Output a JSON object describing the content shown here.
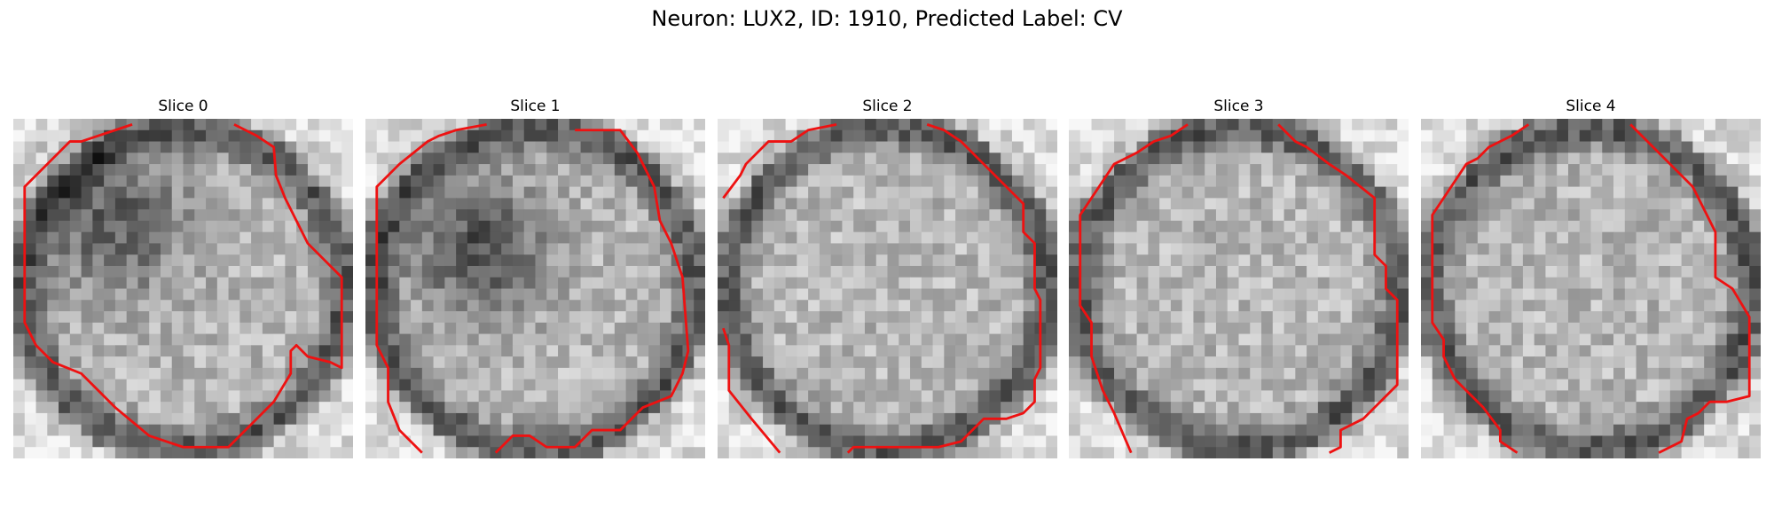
{
  "title": "Neuron: LUX2, ID: 1910, Predicted Label: CV",
  "panels": [
    {
      "label": "Slice 0"
    },
    {
      "label": "Slice 1"
    },
    {
      "label": "Slice 2"
    },
    {
      "label": "Slice 3"
    },
    {
      "label": "Slice 4"
    }
  ]
}
